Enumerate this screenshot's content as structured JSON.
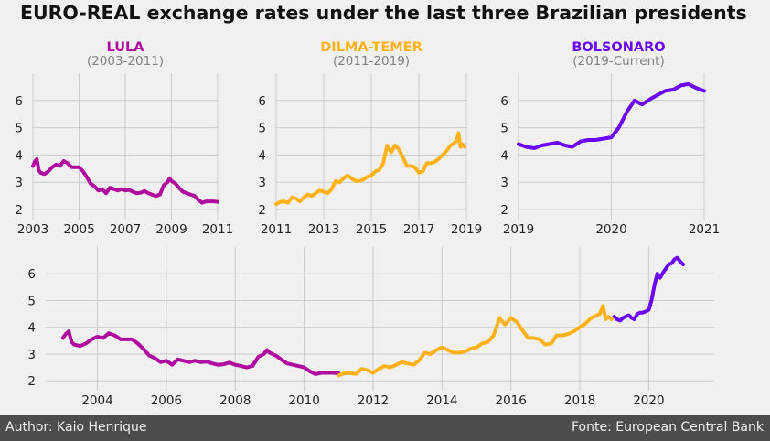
{
  "title": "EURO-REAL exchange rates under the last three Brazilian presidents",
  "footer": {
    "author": "Author: Kaio Henrique",
    "source": "Fonte: European Central Bank"
  },
  "colors": {
    "lula": "#af0b9e",
    "dilma": "#ffb21a",
    "bolsonaro": "#6a06f4",
    "background": "#f0f0f0",
    "grid": "#cbcbcb",
    "footer_bg": "#4d4d4d"
  },
  "chart_data": [
    {
      "type": "line",
      "title": "LULA",
      "subtitle": "(2003-2011)",
      "color": "#af0b9e",
      "xlim": [
        2003,
        2011
      ],
      "ylim": [
        1.7,
        7.0
      ],
      "xticks": [
        2003,
        2005,
        2007,
        2009,
        2011
      ],
      "yticks": [
        2,
        3,
        4,
        5,
        6
      ],
      "grid": true,
      "x": [
        2003.0,
        2003.08,
        2003.17,
        2003.25,
        2003.33,
        2003.5,
        2003.67,
        2003.83,
        2004.0,
        2004.17,
        2004.33,
        2004.5,
        2004.67,
        2004.83,
        2005.0,
        2005.17,
        2005.33,
        2005.5,
        2005.67,
        2005.83,
        2006.0,
        2006.17,
        2006.33,
        2006.5,
        2006.67,
        2006.83,
        2007.0,
        2007.17,
        2007.33,
        2007.5,
        2007.67,
        2007.83,
        2008.0,
        2008.17,
        2008.33,
        2008.5,
        2008.67,
        2008.83,
        2008.92,
        2009.0,
        2009.17,
        2009.33,
        2009.5,
        2009.67,
        2009.83,
        2010.0,
        2010.17,
        2010.33,
        2010.5,
        2010.67,
        2010.83,
        2011.0
      ],
      "values": [
        3.6,
        3.75,
        3.85,
        3.45,
        3.35,
        3.3,
        3.4,
        3.55,
        3.65,
        3.6,
        3.78,
        3.7,
        3.55,
        3.55,
        3.55,
        3.4,
        3.2,
        2.95,
        2.85,
        2.7,
        2.75,
        2.6,
        2.8,
        2.75,
        2.7,
        2.75,
        2.7,
        2.72,
        2.65,
        2.6,
        2.62,
        2.68,
        2.6,
        2.55,
        2.5,
        2.55,
        2.9,
        3.0,
        3.15,
        3.05,
        2.95,
        2.8,
        2.65,
        2.6,
        2.55,
        2.5,
        2.35,
        2.25,
        2.3,
        2.3,
        2.3,
        2.28
      ]
    },
    {
      "type": "line",
      "title": "DILMA-TEMER",
      "subtitle": "(2011-2019)",
      "color": "#ffb21a",
      "xlim": [
        2011,
        2019
      ],
      "ylim": [
        1.7,
        7.0
      ],
      "xticks": [
        2011,
        2013,
        2015,
        2017,
        2019
      ],
      "yticks": [
        2,
        3,
        4,
        5,
        6
      ],
      "grid": true,
      "x": [
        2011.0,
        2011.17,
        2011.33,
        2011.5,
        2011.67,
        2011.83,
        2012.0,
        2012.17,
        2012.33,
        2012.5,
        2012.67,
        2012.83,
        2013.0,
        2013.17,
        2013.33,
        2013.5,
        2013.67,
        2013.83,
        2014.0,
        2014.17,
        2014.33,
        2014.5,
        2014.67,
        2014.83,
        2015.0,
        2015.17,
        2015.33,
        2015.5,
        2015.67,
        2015.83,
        2016.0,
        2016.17,
        2016.33,
        2016.5,
        2016.67,
        2016.83,
        2017.0,
        2017.17,
        2017.33,
        2017.5,
        2017.67,
        2017.83,
        2018.0,
        2018.17,
        2018.33,
        2018.5,
        2018.58,
        2018.67,
        2018.75,
        2018.83,
        2018.92
      ],
      "values": [
        2.2,
        2.28,
        2.3,
        2.25,
        2.45,
        2.4,
        2.3,
        2.45,
        2.55,
        2.5,
        2.6,
        2.7,
        2.65,
        2.6,
        2.75,
        3.05,
        3.0,
        3.15,
        3.25,
        3.15,
        3.05,
        3.05,
        3.1,
        3.2,
        3.25,
        3.4,
        3.45,
        3.7,
        4.35,
        4.1,
        4.35,
        4.2,
        3.9,
        3.6,
        3.6,
        3.55,
        3.35,
        3.4,
        3.7,
        3.7,
        3.75,
        3.85,
        4.0,
        4.15,
        4.35,
        4.45,
        4.5,
        4.8,
        4.3,
        4.4,
        4.3
      ]
    },
    {
      "type": "line",
      "title": "BOLSONARO",
      "subtitle": "(2019-Current)",
      "color": "#6a06f4",
      "xlim": [
        2019,
        2021
      ],
      "ylim": [
        1.7,
        7.0
      ],
      "xticks": [
        2019,
        2020,
        2021
      ],
      "yticks": [
        2,
        3,
        4,
        5,
        6
      ],
      "grid": true,
      "x": [
        2019.0,
        2019.08,
        2019.17,
        2019.25,
        2019.33,
        2019.42,
        2019.5,
        2019.58,
        2019.67,
        2019.75,
        2019.83,
        2019.92,
        2020.0,
        2020.08,
        2020.17,
        2020.25,
        2020.33,
        2020.42,
        2020.5,
        2020.58,
        2020.67,
        2020.75,
        2020.83,
        2020.92,
        2021.0
      ],
      "values": [
        4.4,
        4.3,
        4.25,
        4.35,
        4.4,
        4.45,
        4.35,
        4.3,
        4.5,
        4.55,
        4.55,
        4.6,
        4.65,
        5.0,
        5.6,
        6.0,
        5.85,
        6.05,
        6.2,
        6.35,
        6.4,
        6.55,
        6.6,
        6.45,
        6.35
      ]
    },
    {
      "type": "line",
      "title": "",
      "xlim": [
        2002.5,
        2021.9
      ],
      "ylim": [
        1.7,
        7.0
      ],
      "xticks": [
        2004,
        2006,
        2008,
        2010,
        2012,
        2014,
        2016,
        2018,
        2020
      ],
      "yticks": [
        2,
        3,
        4,
        5,
        6
      ],
      "grid": true,
      "series": [
        {
          "color": "#af0b9e",
          "ref": 0
        },
        {
          "color": "#ffb21a",
          "ref": 1
        },
        {
          "color": "#6a06f4",
          "ref": 2
        }
      ]
    }
  ]
}
